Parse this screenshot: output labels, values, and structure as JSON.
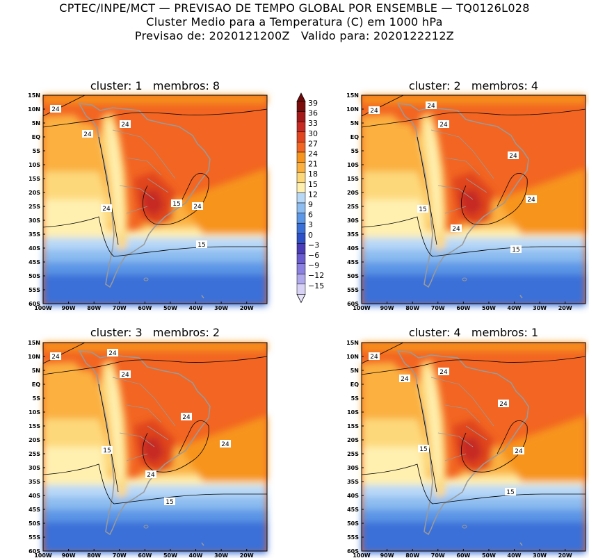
{
  "header": {
    "line1": "CPTEC/INPE/MCT — PREVISAO DE TEMPO GLOBAL POR ENSEMBLE — TQ0126L028",
    "line2": "Cluster Medio para a Temperatura (C) em 1000 hPa",
    "line3": "Previsao de: 2020121200Z   Valido para: 2020122212Z"
  },
  "map": {
    "lat_labels": [
      "15N",
      "10N",
      "5N",
      "EQ",
      "5S",
      "10S",
      "15S",
      "20S",
      "25S",
      "30S",
      "35S",
      "40S",
      "45S",
      "50S",
      "55S",
      "60S"
    ],
    "lon_labels": [
      "100W",
      "90W",
      "80W",
      "70W",
      "60W",
      "50W",
      "40W",
      "30W",
      "20W"
    ],
    "lat_range": [
      -60,
      15
    ],
    "lon_range": [
      -100,
      -12
    ]
  },
  "colorbar": {
    "levels": [
      "39",
      "36",
      "33",
      "30",
      "27",
      "24",
      "21",
      "18",
      "15",
      "12",
      "9",
      "6",
      "3",
      "0",
      "−3",
      "−6",
      "−9",
      "−12",
      "−15"
    ],
    "colors": [
      "#7a0c0c",
      "#a31818",
      "#c62a22",
      "#e0451f",
      "#f26522",
      "#f7941d",
      "#fbb040",
      "#fdd87a",
      "#fff0b0",
      "#b8d8f8",
      "#8cbcf0",
      "#5c96e6",
      "#3a6fd8",
      "#2d4fc8",
      "#4a3cb8",
      "#6a5cd0",
      "#8c80e0",
      "#b0a8ec",
      "#d8d2f6"
    ],
    "top_color": "#6e0a0a",
    "bottom_color": "#e8e4fa"
  },
  "panels": [
    {
      "title": "cluster: 1   membros: 8",
      "contour_labels": [
        "24",
        "24",
        "24",
        "15",
        "24",
        "24",
        "15"
      ]
    },
    {
      "title": "cluster: 2   membros: 4",
      "contour_labels": [
        "24",
        "24",
        "24",
        "24",
        "15",
        "24",
        "24",
        "15"
      ]
    },
    {
      "title": "cluster: 3   membros: 2",
      "contour_labels": [
        "24",
        "24",
        "24",
        "24",
        "15",
        "24",
        "24",
        "15"
      ]
    },
    {
      "title": "cluster: 4   membros: 1",
      "contour_labels": [
        "24",
        "24",
        "24",
        "24",
        "15",
        "24",
        "15"
      ]
    }
  ]
}
